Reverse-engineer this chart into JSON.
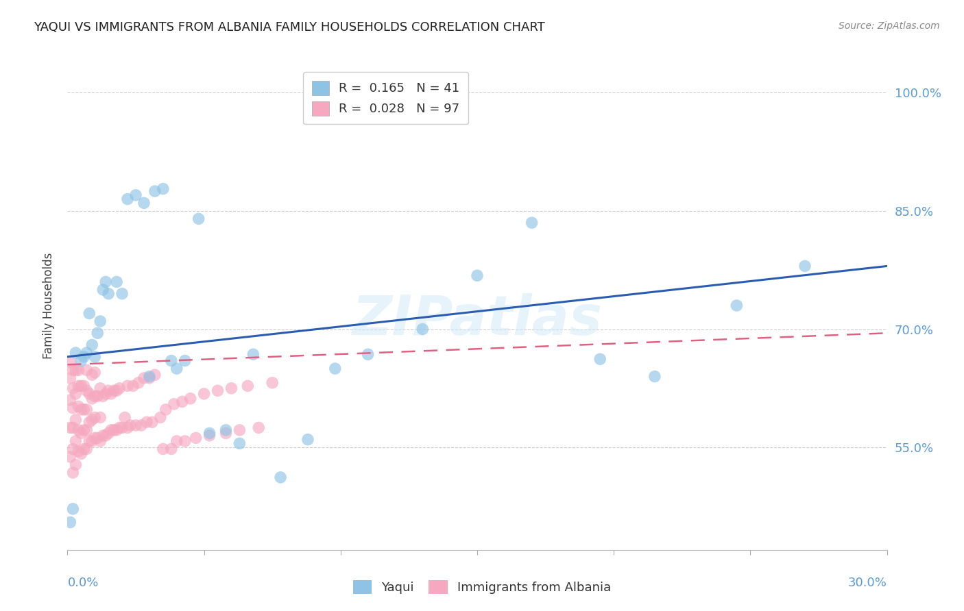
{
  "title": "YAQUI VS IMMIGRANTS FROM ALBANIA FAMILY HOUSEHOLDS CORRELATION CHART",
  "source": "Source: ZipAtlas.com",
  "ylabel": "Family Households",
  "xmin": 0.0,
  "xmax": 0.3,
  "ymin": 0.42,
  "ymax": 1.04,
  "yticks": [
    0.55,
    0.7,
    0.85,
    1.0
  ],
  "ytick_labels": [
    "55.0%",
    "70.0%",
    "85.0%",
    "100.0%"
  ],
  "grid_color": "#cccccc",
  "background_color": "#ffffff",
  "blue_color": "#8ec3e6",
  "pink_color": "#f5a8c0",
  "blue_line_color": "#2a5db0",
  "pink_line_color": "#e06080",
  "blue_label": "Yaqui",
  "pink_label": "Immigrants from Albania",
  "blue_R": 0.165,
  "blue_N": 41,
  "pink_R": 0.028,
  "pink_N": 97,
  "watermark": "ZIPatlas",
  "title_fontsize": 13,
  "tick_label_color": "#5b9bd5",
  "blue_x": [
    0.001,
    0.002,
    0.003,
    0.005,
    0.006,
    0.007,
    0.008,
    0.009,
    0.01,
    0.011,
    0.012,
    0.013,
    0.014,
    0.015,
    0.018,
    0.02,
    0.022,
    0.025,
    0.028,
    0.03,
    0.032,
    0.035,
    0.038,
    0.04,
    0.043,
    0.048,
    0.052,
    0.058,
    0.063,
    0.068,
    0.078,
    0.088,
    0.098,
    0.11,
    0.13,
    0.15,
    0.17,
    0.195,
    0.215,
    0.245,
    0.27
  ],
  "blue_y": [
    0.455,
    0.472,
    0.67,
    0.66,
    0.665,
    0.67,
    0.72,
    0.68,
    0.665,
    0.695,
    0.71,
    0.75,
    0.76,
    0.745,
    0.76,
    0.745,
    0.865,
    0.87,
    0.86,
    0.64,
    0.875,
    0.878,
    0.66,
    0.65,
    0.66,
    0.84,
    0.568,
    0.572,
    0.555,
    0.668,
    0.512,
    0.56,
    0.65,
    0.668,
    0.7,
    0.768,
    0.835,
    0.662,
    0.64,
    0.73,
    0.78
  ],
  "pink_x": [
    0.001,
    0.001,
    0.001,
    0.001,
    0.001,
    0.002,
    0.002,
    0.002,
    0.002,
    0.002,
    0.002,
    0.003,
    0.003,
    0.003,
    0.003,
    0.003,
    0.004,
    0.004,
    0.004,
    0.004,
    0.004,
    0.005,
    0.005,
    0.005,
    0.005,
    0.006,
    0.006,
    0.006,
    0.006,
    0.007,
    0.007,
    0.007,
    0.007,
    0.007,
    0.008,
    0.008,
    0.008,
    0.009,
    0.009,
    0.009,
    0.009,
    0.01,
    0.01,
    0.01,
    0.01,
    0.011,
    0.011,
    0.012,
    0.012,
    0.012,
    0.013,
    0.013,
    0.014,
    0.014,
    0.015,
    0.015,
    0.016,
    0.016,
    0.017,
    0.017,
    0.018,
    0.018,
    0.019,
    0.019,
    0.02,
    0.021,
    0.022,
    0.022,
    0.023,
    0.024,
    0.025,
    0.026,
    0.027,
    0.028,
    0.029,
    0.03,
    0.031,
    0.032,
    0.034,
    0.035,
    0.036,
    0.038,
    0.039,
    0.04,
    0.042,
    0.043,
    0.045,
    0.047,
    0.05,
    0.052,
    0.055,
    0.058,
    0.06,
    0.063,
    0.066,
    0.07,
    0.075
  ],
  "pink_y": [
    0.538,
    0.575,
    0.61,
    0.638,
    0.658,
    0.518,
    0.548,
    0.575,
    0.6,
    0.625,
    0.648,
    0.528,
    0.558,
    0.585,
    0.618,
    0.648,
    0.545,
    0.572,
    0.602,
    0.628,
    0.648,
    0.542,
    0.568,
    0.598,
    0.628,
    0.548,
    0.572,
    0.598,
    0.628,
    0.548,
    0.572,
    0.598,
    0.622,
    0.648,
    0.558,
    0.582,
    0.618,
    0.558,
    0.585,
    0.612,
    0.642,
    0.562,
    0.588,
    0.615,
    0.645,
    0.562,
    0.615,
    0.558,
    0.588,
    0.625,
    0.565,
    0.615,
    0.565,
    0.618,
    0.568,
    0.622,
    0.572,
    0.618,
    0.572,
    0.622,
    0.572,
    0.622,
    0.575,
    0.625,
    0.575,
    0.588,
    0.575,
    0.628,
    0.578,
    0.628,
    0.578,
    0.632,
    0.578,
    0.638,
    0.582,
    0.638,
    0.582,
    0.642,
    0.588,
    0.548,
    0.598,
    0.548,
    0.605,
    0.558,
    0.608,
    0.558,
    0.612,
    0.562,
    0.618,
    0.565,
    0.622,
    0.568,
    0.625,
    0.572,
    0.628,
    0.575,
    0.632
  ]
}
